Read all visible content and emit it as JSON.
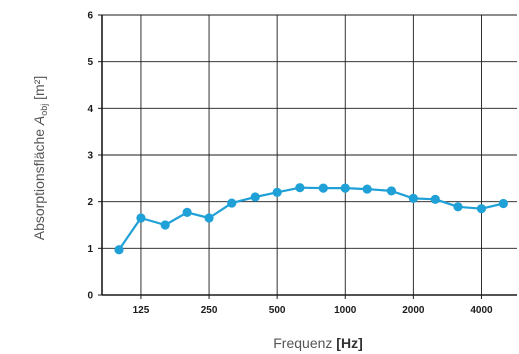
{
  "chart_data": {
    "type": "line",
    "xscale": "log",
    "x_tick_values": [
      125,
      250,
      500,
      1000,
      2000,
      4000
    ],
    "x_tick_labels": [
      "125",
      "250",
      "500",
      "1000",
      "2000",
      "4000"
    ],
    "y_tick_values": [
      0,
      1,
      2,
      3,
      4,
      5,
      6
    ],
    "y_tick_labels": [
      "0",
      "1",
      "2",
      "3",
      "4",
      "5",
      "6"
    ],
    "ylim": [
      0,
      6
    ],
    "grid": true,
    "xlabel": {
      "text": "Frequenz ",
      "unit": "[Hz]"
    },
    "ylabel": {
      "prefix": "Absorptionsfläche ",
      "symbol": "A",
      "subscript": "obj",
      "unit": " [m²]"
    },
    "series": [
      {
        "color": "#1fa0d6",
        "x": [
          100,
          125,
          160,
          200,
          250,
          315,
          400,
          500,
          630,
          800,
          1000,
          1250,
          1600,
          2000,
          2500,
          3150,
          4000,
          5000
        ],
        "y": [
          0.97,
          1.65,
          1.5,
          1.77,
          1.65,
          1.97,
          2.1,
          2.2,
          2.3,
          2.29,
          2.29,
          2.27,
          2.23,
          2.07,
          2.05,
          1.89,
          1.85,
          1.96
        ]
      }
    ]
  }
}
